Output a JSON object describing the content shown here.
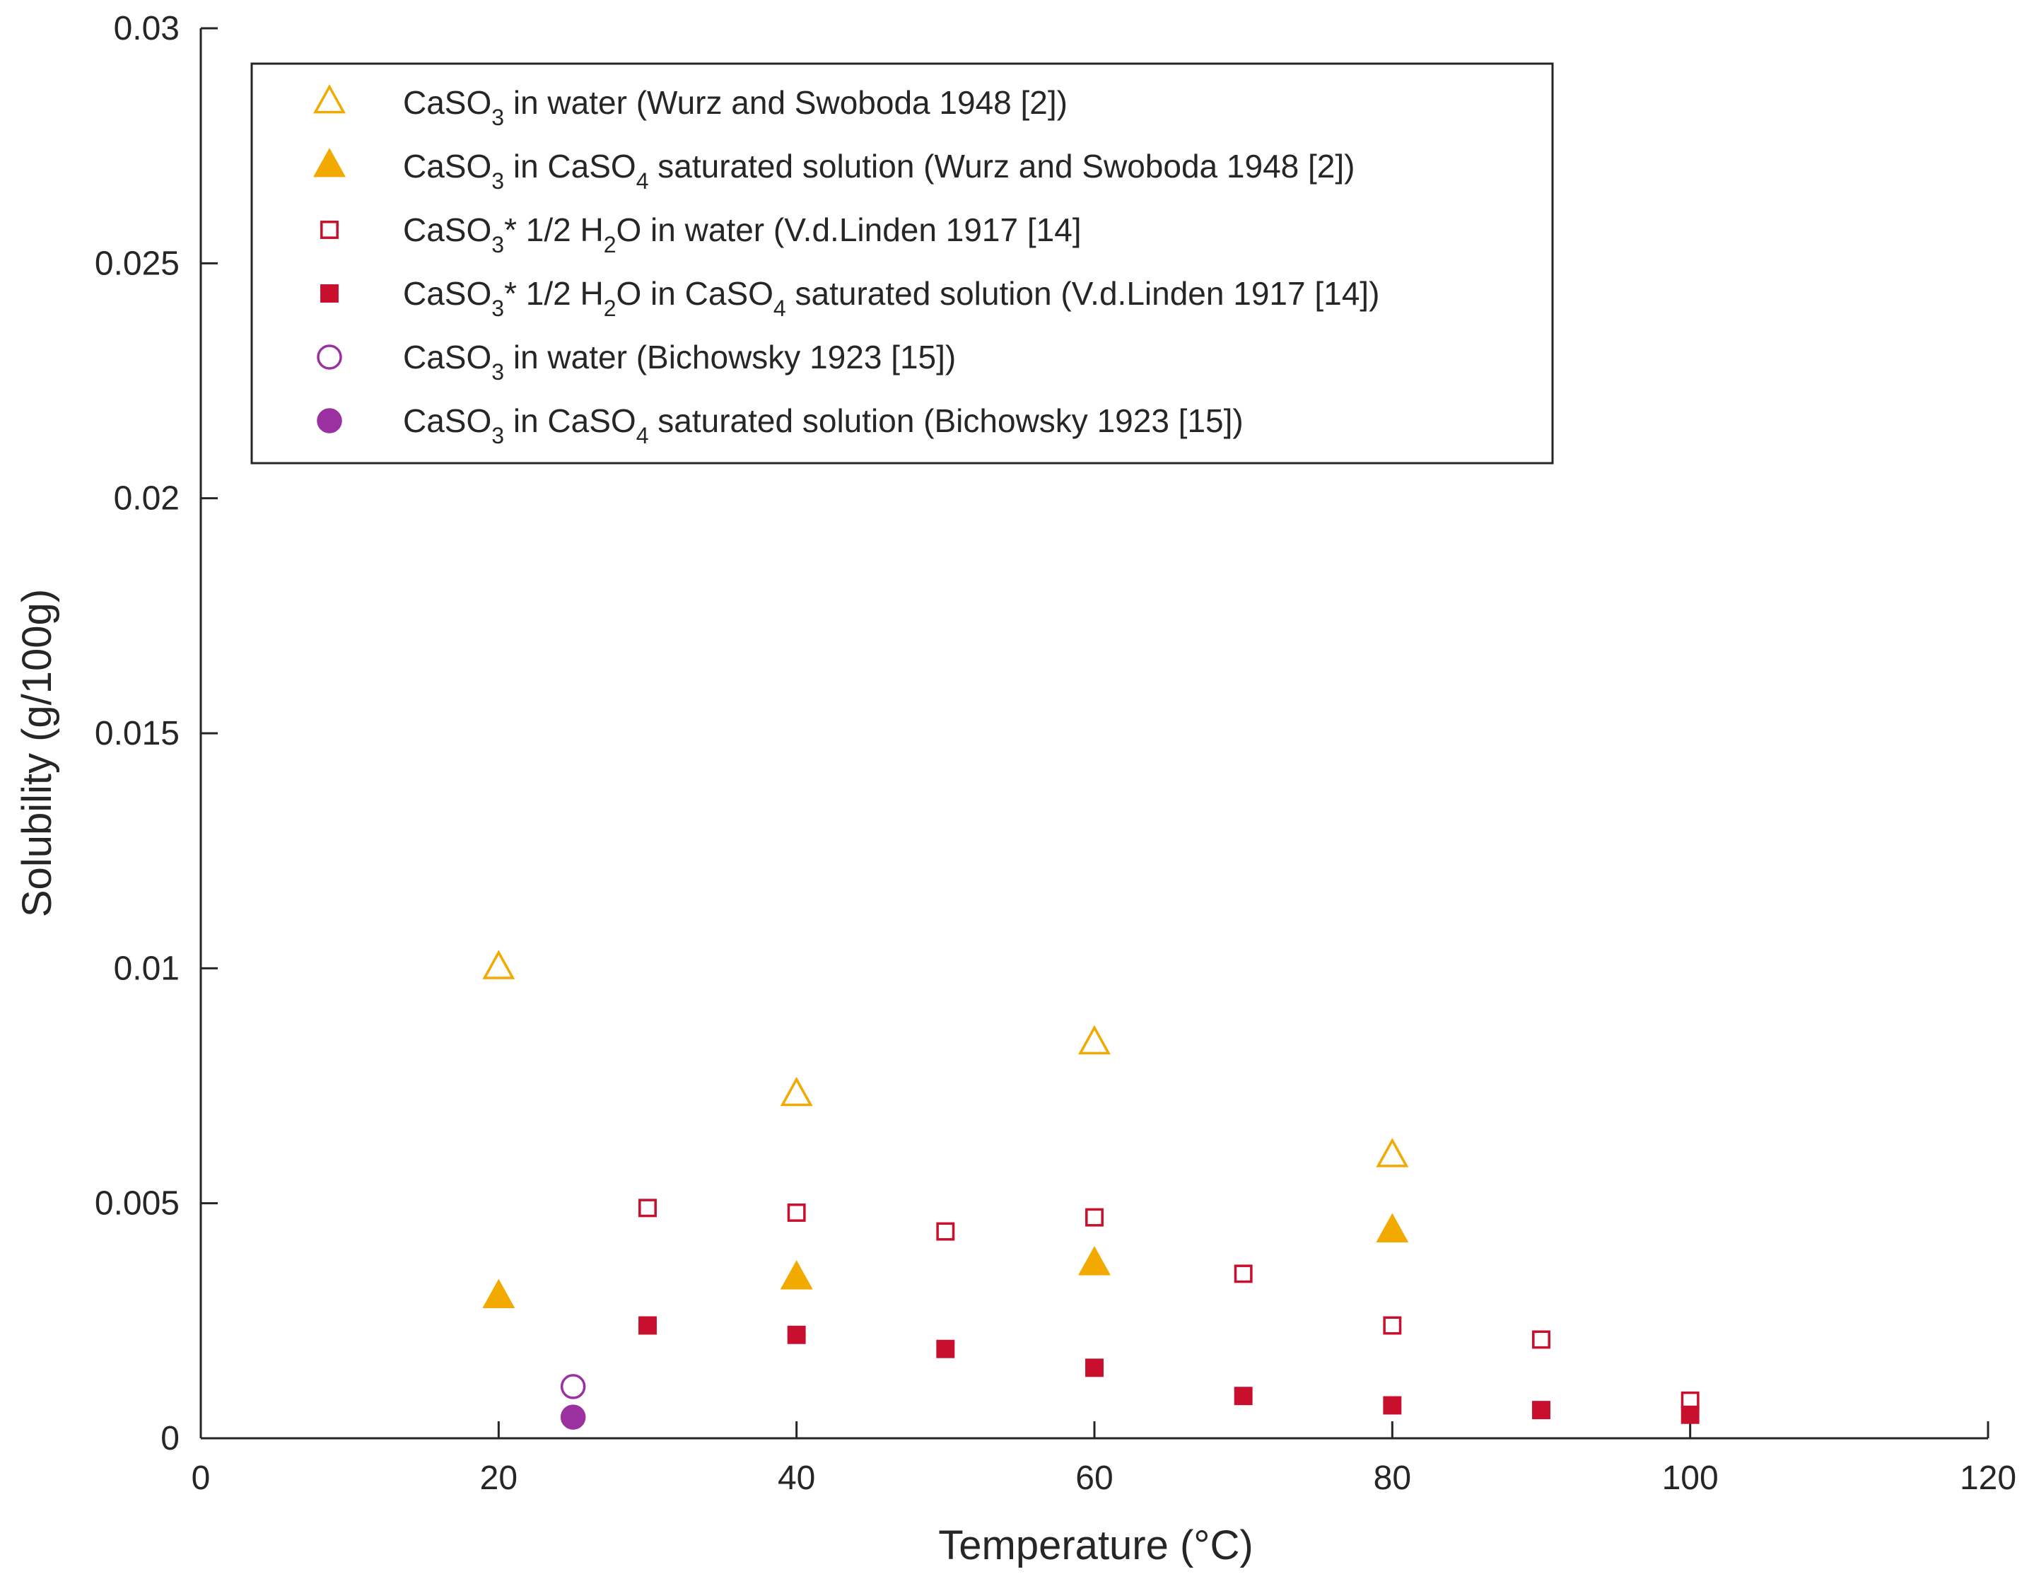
{
  "chart_data": {
    "type": "scatter",
    "xlabel": "Temperature (°C)",
    "ylabel": "Solubility (g/100g)",
    "xlim": [
      0,
      120
    ],
    "ylim": [
      0,
      0.03
    ],
    "xticks": [
      0,
      20,
      40,
      60,
      80,
      100,
      120
    ],
    "yticks": [
      0,
      0.005,
      0.01,
      0.015,
      0.02,
      0.025,
      0.03
    ],
    "xtick_labels": [
      "0",
      "20",
      "40",
      "60",
      "80",
      "100",
      "120"
    ],
    "ytick_labels": [
      "0",
      "0.005",
      "0.01",
      "0.015",
      "0.02",
      "0.025",
      "0.03"
    ],
    "grid": false,
    "legend_position": "top-left",
    "series": [
      {
        "name": "CaSO3 in water (Wurz and Swoboda 1948 [2])",
        "legend_parts": [
          [
            "CaSO",
            ""
          ],
          [
            "3",
            "sub"
          ],
          [
            " in water (Wurz and Swoboda 1948 [2])",
            ""
          ]
        ],
        "marker": "triangle",
        "filled": false,
        "color": "#F2A900",
        "x": [
          20,
          40,
          60,
          80
        ],
        "y": [
          0.01,
          0.0073,
          0.0084,
          0.006
        ]
      },
      {
        "name": "CaSO3 in CaSO4 saturated solution (Wurz and Swoboda 1948 [2])",
        "legend_parts": [
          [
            "CaSO",
            ""
          ],
          [
            "3",
            "sub"
          ],
          [
            " in CaSO",
            ""
          ],
          [
            "4",
            "sub"
          ],
          [
            " saturated solution (Wurz and Swoboda 1948 [2])",
            ""
          ]
        ],
        "marker": "triangle",
        "filled": true,
        "color": "#F2A900",
        "x": [
          20,
          40,
          60,
          80
        ],
        "y": [
          0.003,
          0.0034,
          0.0037,
          0.0044
        ]
      },
      {
        "name": "CaSO3* 1/2 H2O in water (V.d.Linden 1917 [14]",
        "legend_parts": [
          [
            "CaSO",
            ""
          ],
          [
            "3",
            "sub"
          ],
          [
            "* 1/2 H",
            ""
          ],
          [
            "2",
            "sub"
          ],
          [
            "O in water (V.d.Linden 1917 [14]",
            ""
          ]
        ],
        "marker": "square",
        "filled": false,
        "color": "#C8102E",
        "x": [
          30,
          40,
          50,
          60,
          70,
          80,
          90,
          100
        ],
        "y": [
          0.0049,
          0.0048,
          0.0044,
          0.0047,
          0.0035,
          0.0024,
          0.0021,
          0.0008
        ]
      },
      {
        "name": "CaSO3* 1/2 H2O in CaSO4 saturated solution (V.d.Linden 1917 [14])",
        "legend_parts": [
          [
            "CaSO",
            ""
          ],
          [
            "3",
            "sub"
          ],
          [
            "* 1/2 H",
            ""
          ],
          [
            "2",
            "sub"
          ],
          [
            "O in CaSO",
            ""
          ],
          [
            "4",
            "sub"
          ],
          [
            " saturated solution (V.d.Linden 1917 [14])",
            ""
          ]
        ],
        "marker": "square",
        "filled": true,
        "color": "#C8102E",
        "x": [
          30,
          40,
          50,
          60,
          70,
          80,
          90,
          100
        ],
        "y": [
          0.0024,
          0.0022,
          0.0019,
          0.0015,
          0.0009,
          0.0007,
          0.0006,
          0.0005
        ]
      },
      {
        "name": "CaSO3 in water (Bichowsky 1923 [15])",
        "legend_parts": [
          [
            "CaSO",
            ""
          ],
          [
            "3",
            "sub"
          ],
          [
            " in water (Bichowsky 1923 [15])",
            ""
          ]
        ],
        "marker": "circle",
        "filled": false,
        "color": "#9B30A0",
        "x": [
          25
        ],
        "y": [
          0.0011
        ]
      },
      {
        "name": "CaSO3 in CaSO4 saturated solution (Bichowsky 1923 [15])",
        "legend_parts": [
          [
            "CaSO",
            ""
          ],
          [
            "3",
            "sub"
          ],
          [
            " in CaSO",
            ""
          ],
          [
            "4",
            "sub"
          ],
          [
            " saturated solution (Bichowsky 1923 [15])",
            ""
          ]
        ],
        "marker": "circle",
        "filled": true,
        "color": "#9B30A0",
        "x": [
          25
        ],
        "y": [
          0.00045
        ]
      }
    ]
  }
}
